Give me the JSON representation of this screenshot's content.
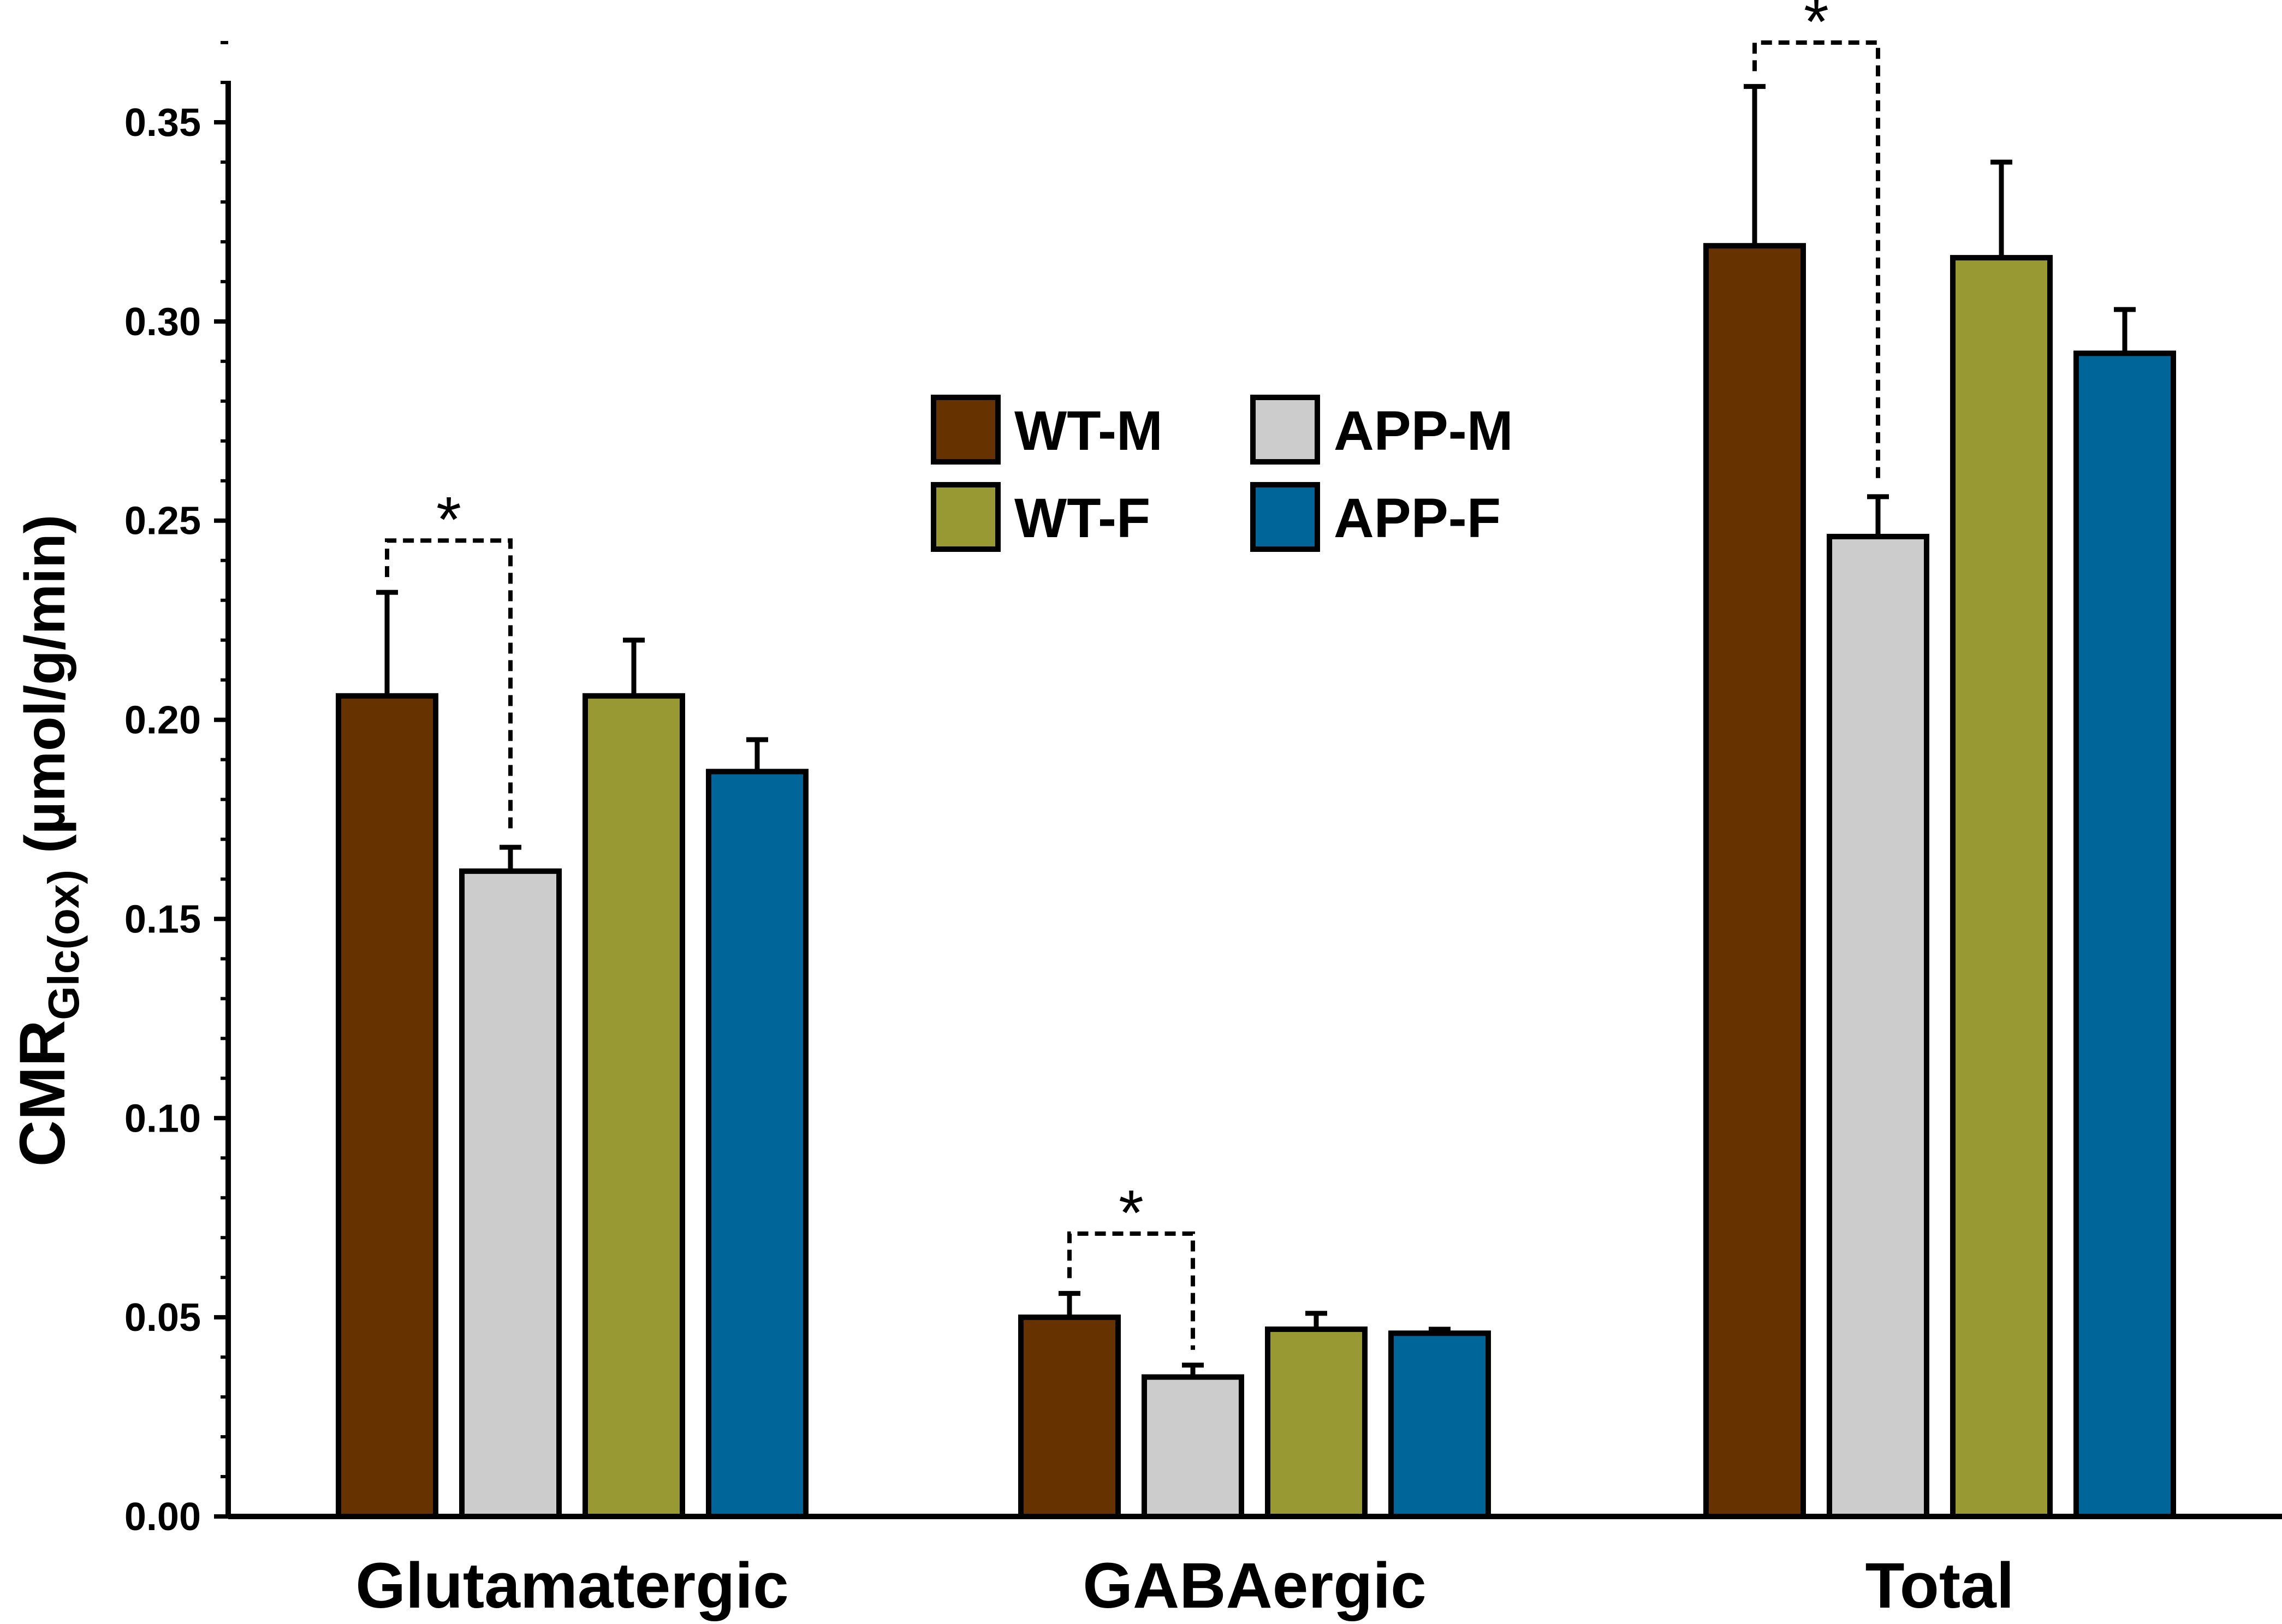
{
  "chart_data": {
    "type": "bar",
    "categories": [
      "Glutamatergic",
      "GABAergic",
      "Total"
    ],
    "series": [
      {
        "name": "WT-M",
        "color": "#663300",
        "values": [
          0.206,
          0.05,
          0.319
        ],
        "errors": [
          0.026,
          0.006,
          0.04
        ]
      },
      {
        "name": "APP-M",
        "color": "#CCCCCC",
        "values": [
          0.162,
          0.035,
          0.246
        ],
        "errors": [
          0.006,
          0.003,
          0.01
        ]
      },
      {
        "name": "WT-F",
        "color": "#999933",
        "values": [
          0.206,
          0.047,
          0.316
        ],
        "errors": [
          0.014,
          0.004,
          0.024
        ]
      },
      {
        "name": "APP-F",
        "color": "#006699",
        "values": [
          0.187,
          0.046,
          0.292
        ],
        "errors": [
          0.008,
          0.001,
          0.011
        ]
      }
    ],
    "ylim": [
      0,
      0.35
    ],
    "yticks": [
      "0.00",
      "0.05",
      "0.10",
      "0.15",
      "0.20",
      "0.25",
      "0.30",
      "0.35"
    ],
    "ylabel": {
      "main": "CMR",
      "subscript": "Glc(ox)",
      "unit": "(µmol/g/min)"
    },
    "xlabel": "",
    "legend_position": "top-center",
    "significance": [
      {
        "category": "Glutamatergic",
        "between": [
          "WT-M",
          "APP-M"
        ],
        "symbol": "*"
      },
      {
        "category": "GABAergic",
        "between": [
          "WT-M",
          "APP-M"
        ],
        "symbol": "*"
      },
      {
        "category": "Total",
        "between": [
          "WT-M",
          "APP-M"
        ],
        "symbol": "*"
      }
    ]
  }
}
